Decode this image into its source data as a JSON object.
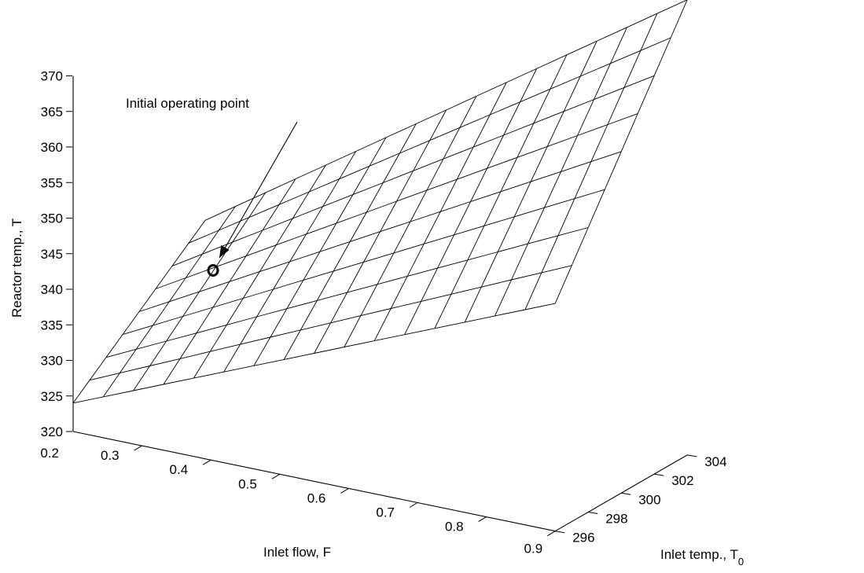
{
  "chart_data": {
    "type": "surface",
    "title": "",
    "xlabel": "Inlet flow, F",
    "ylabel_main": "Inlet temp., T",
    "ylabel_sub": "0",
    "zlabel": "Reactor temp., T",
    "x_ticks": [
      "0.2",
      "0.3",
      "0.4",
      "0.5",
      "0.6",
      "0.7",
      "0.8",
      "0.9"
    ],
    "y_ticks": [
      "296",
      "298",
      "300",
      "302",
      "304"
    ],
    "z_ticks": [
      "320",
      "325",
      "330",
      "335",
      "340",
      "345",
      "350",
      "355",
      "360",
      "365",
      "370"
    ],
    "xlim": [
      0.2,
      0.9
    ],
    "ylim": [
      296,
      304
    ],
    "zlim": [
      320,
      370
    ],
    "grid": false,
    "surface_corners": [
      {
        "F": 0.2,
        "T0": 296,
        "T": 324
      },
      {
        "F": 0.2,
        "T0": 304,
        "T": 339
      },
      {
        "F": 0.9,
        "T0": 304,
        "T": 384
      },
      {
        "F": 0.9,
        "T0": 296,
        "T": 352
      }
    ],
    "annotation": {
      "text": "Initial operating point",
      "marker": "o"
    }
  }
}
